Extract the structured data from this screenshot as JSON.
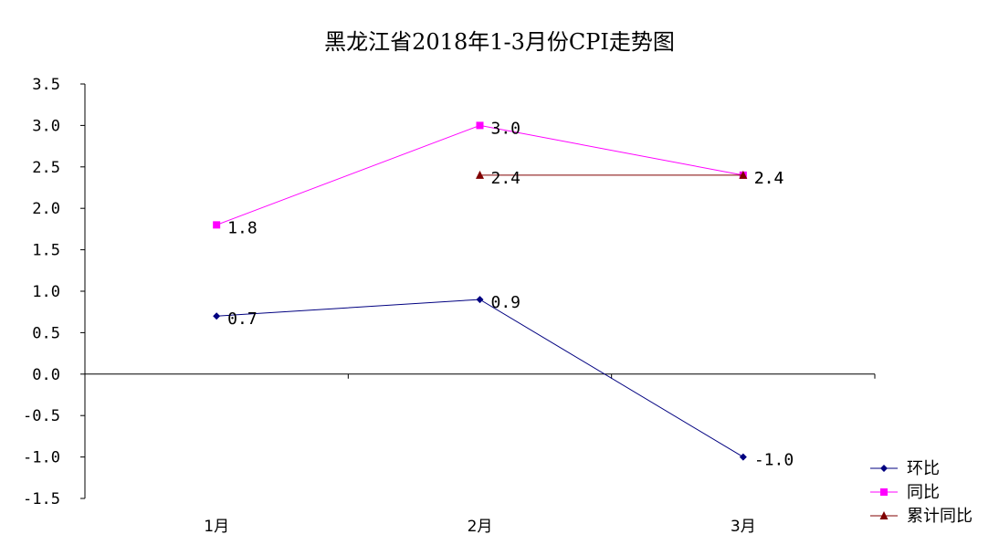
{
  "chart_data": {
    "type": "line",
    "title": "黑龙江省2018年1-3月份CPI走势图",
    "categories": [
      "1月",
      "2月",
      "3月"
    ],
    "y_ticks": [
      "3.5",
      "3.0",
      "2.5",
      "2.0",
      "1.5",
      "1.0",
      "0.5",
      "0.0",
      "-0.5",
      "-1.0",
      "-1.5"
    ],
    "ylim": [
      -1.5,
      3.5
    ],
    "grid": false,
    "legend_position": "bottom-right",
    "series": [
      {
        "name": "环比",
        "values": [
          0.7,
          0.9,
          -1.0
        ],
        "labels": [
          "0.7",
          "0.9",
          "-1.0"
        ],
        "color": "#000080",
        "marker": "diamond"
      },
      {
        "name": "同比",
        "values": [
          1.8,
          3.0,
          2.4
        ],
        "labels": [
          "1.8",
          "3.0",
          "2.4"
        ],
        "color": "#FF00FF",
        "marker": "square"
      },
      {
        "name": "累计同比",
        "values": [
          null,
          2.4,
          2.4
        ],
        "labels": [
          "",
          "2.4",
          "2.4"
        ],
        "color": "#800000",
        "marker": "triangle"
      }
    ]
  }
}
